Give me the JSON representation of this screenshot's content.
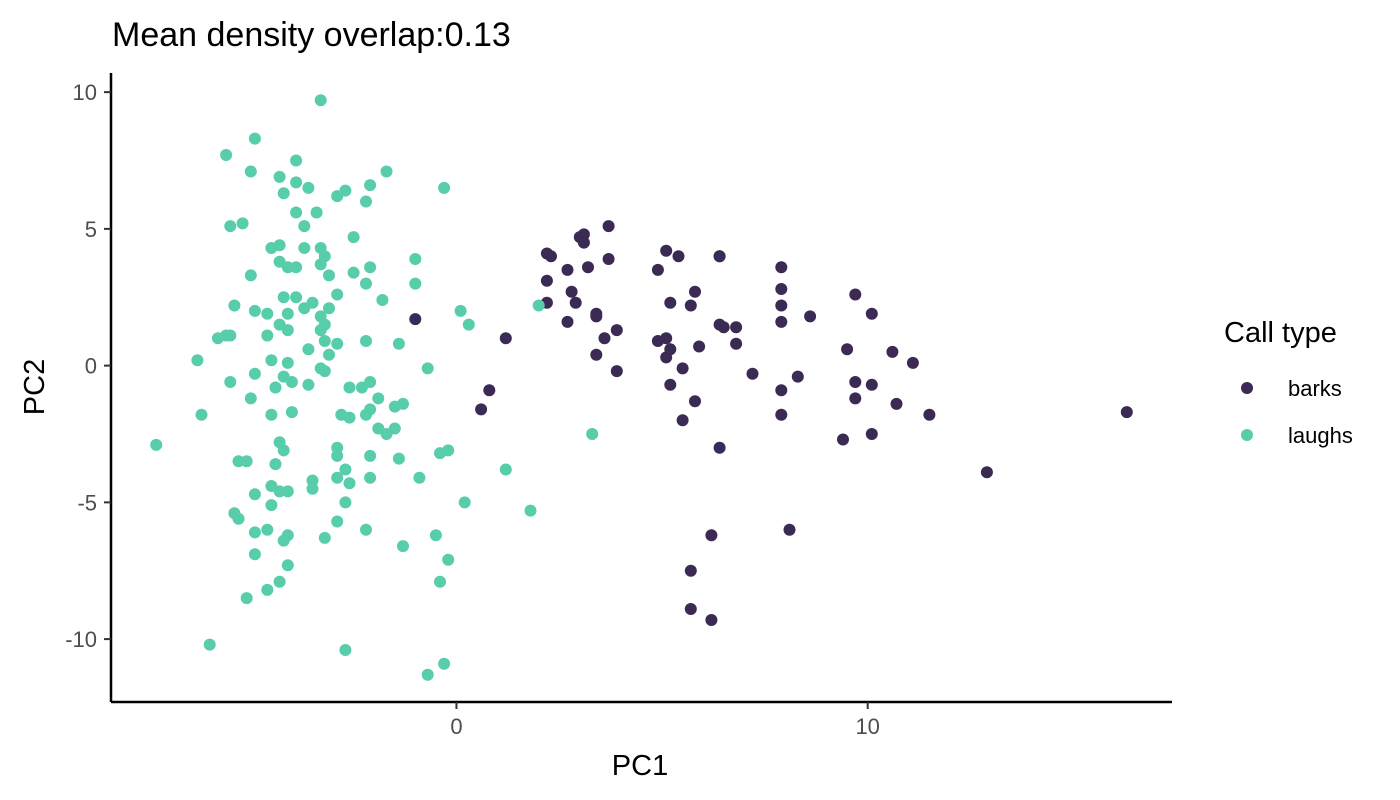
{
  "chart_data": {
    "type": "scatter",
    "title": "Mean density overlap:0.13",
    "xlabel": "PC1",
    "ylabel": "PC2",
    "xlim": [
      -8.4,
      17.4
    ],
    "ylim": [
      -12.3,
      10.7
    ],
    "x_ticks": [
      0,
      10
    ],
    "x_tick_labels": [
      "0",
      "10"
    ],
    "y_ticks": [
      10,
      5,
      0,
      -5,
      -10
    ],
    "y_tick_labels": [
      "10",
      "5",
      "0",
      "-5",
      "-10"
    ],
    "grid": false,
    "legend": {
      "title": "Call type",
      "position": "right",
      "entries": [
        {
          "label": "barks",
          "color": "#3a2a54"
        },
        {
          "label": "laughs",
          "color": "#58cdab"
        }
      ]
    },
    "series": [
      {
        "name": "barks",
        "color": "#3a2a54",
        "points": [
          [
            -1,
            1.7
          ],
          [
            1.2,
            1
          ],
          [
            0.8,
            -0.9
          ],
          [
            0.6,
            -1.6
          ],
          [
            2.2,
            4.1
          ],
          [
            2.3,
            4
          ],
          [
            3,
            4.7
          ],
          [
            3.1,
            4.8
          ],
          [
            3.1,
            4.5
          ],
          [
            3.7,
            5.1
          ],
          [
            2.7,
            3.5
          ],
          [
            2.2,
            3.1
          ],
          [
            3.2,
            3.6
          ],
          [
            3.7,
            3.9
          ],
          [
            2.2,
            2.3
          ],
          [
            2.8,
            2.7
          ],
          [
            2.9,
            2.3
          ],
          [
            2.7,
            1.6
          ],
          [
            3.4,
            1.9
          ],
          [
            3.4,
            1.8
          ],
          [
            3.6,
            1
          ],
          [
            3.9,
            1.3
          ],
          [
            3.4,
            0.4
          ],
          [
            3.9,
            -0.2
          ],
          [
            4.9,
            3.5
          ],
          [
            5.1,
            4.2
          ],
          [
            5.4,
            4
          ],
          [
            5.2,
            2.3
          ],
          [
            5.7,
            2.2
          ],
          [
            5.8,
            2.7
          ],
          [
            6.4,
            4
          ],
          [
            6.4,
            4
          ],
          [
            4.9,
            0.9
          ],
          [
            5.1,
            1
          ],
          [
            5.2,
            0.6
          ],
          [
            5.1,
            0.3
          ],
          [
            5.9,
            0.7
          ],
          [
            6.4,
            1.5
          ],
          [
            6.5,
            1.4
          ],
          [
            6.8,
            1.4
          ],
          [
            6.8,
            0.8
          ],
          [
            5.2,
            -0.7
          ],
          [
            5.5,
            -0.1
          ],
          [
            5.8,
            -1.3
          ],
          [
            5.5,
            -2
          ],
          [
            6.4,
            -3
          ],
          [
            7.9,
            3.6
          ],
          [
            7.9,
            2.8
          ],
          [
            7.9,
            2.2
          ],
          [
            7.9,
            1.6
          ],
          [
            8.6,
            1.8
          ],
          [
            7.2,
            -0.3
          ],
          [
            7.9,
            -0.9
          ],
          [
            8.3,
            -0.4
          ],
          [
            7.9,
            -1.8
          ],
          [
            9.7,
            2.6
          ],
          [
            10.1,
            1.9
          ],
          [
            9.5,
            0.6
          ],
          [
            10.6,
            0.5
          ],
          [
            11.1,
            0.1
          ],
          [
            9.7,
            -0.6
          ],
          [
            10.1,
            -0.7
          ],
          [
            9.7,
            -1.2
          ],
          [
            10.7,
            -1.4
          ],
          [
            11.5,
            -1.8
          ],
          [
            9.4,
            -2.7
          ],
          [
            10.1,
            -2.5
          ],
          [
            8.1,
            -6
          ],
          [
            6.2,
            -6.2
          ],
          [
            5.7,
            -7.5
          ],
          [
            5.7,
            -8.9
          ],
          [
            6.2,
            -9.3
          ],
          [
            12.9,
            -3.9
          ],
          [
            16.3,
            -1.7
          ]
        ]
      },
      {
        "name": "laughs",
        "color": "#58cdab",
        "points": [
          [
            -3.3,
            9.7
          ],
          [
            -4.9,
            8.3
          ],
          [
            -5.6,
            7.7
          ],
          [
            -5,
            7.1
          ],
          [
            -4.3,
            6.9
          ],
          [
            -3.9,
            7.5
          ],
          [
            -1.7,
            7.1
          ],
          [
            -4.2,
            6.3
          ],
          [
            -3.9,
            6.7
          ],
          [
            -3.6,
            6.5
          ],
          [
            -2.7,
            6.4
          ],
          [
            -2.9,
            6.2
          ],
          [
            -2.1,
            6.6
          ],
          [
            -2.2,
            6
          ],
          [
            -0.3,
            6.5
          ],
          [
            -3.9,
            5.6
          ],
          [
            -3.4,
            5.6
          ],
          [
            -3.7,
            5.1
          ],
          [
            -5.2,
            5.2
          ],
          [
            -5.5,
            5.1
          ],
          [
            -2.5,
            4.7
          ],
          [
            -4.3,
            4.4
          ],
          [
            -4.5,
            4.3
          ],
          [
            -3.3,
            4.3
          ],
          [
            -3.7,
            4.3
          ],
          [
            -3.2,
            4
          ],
          [
            -3.3,
            3.7
          ],
          [
            -4.3,
            3.8
          ],
          [
            -4.1,
            3.6
          ],
          [
            -3.9,
            3.6
          ],
          [
            -5,
            3.3
          ],
          [
            -3.1,
            3.3
          ],
          [
            -2.5,
            3.4
          ],
          [
            -2.1,
            3.6
          ],
          [
            -1,
            3.9
          ],
          [
            -1,
            3
          ],
          [
            -2.2,
            3
          ],
          [
            -4.2,
            2.5
          ],
          [
            -3.9,
            2.5
          ],
          [
            -3.5,
            2.3
          ],
          [
            -3.7,
            2.1
          ],
          [
            -3.1,
            2.1
          ],
          [
            -2.9,
            2.6
          ],
          [
            -1.8,
            2.4
          ],
          [
            -5.4,
            2.2
          ],
          [
            -4.9,
            2
          ],
          [
            -4.6,
            1.9
          ],
          [
            -4.1,
            1.9
          ],
          [
            -4.3,
            1.5
          ],
          [
            -4.1,
            1.3
          ],
          [
            -3.3,
            1.8
          ],
          [
            -3.2,
            1.5
          ],
          [
            -3.3,
            1.3
          ],
          [
            2,
            2.2
          ],
          [
            0.1,
            2
          ],
          [
            0.3,
            1.5
          ],
          [
            -5.6,
            1.1
          ],
          [
            -5.5,
            1.1
          ],
          [
            -4.6,
            1.1
          ],
          [
            -5.8,
            1
          ],
          [
            -3.2,
            0.9
          ],
          [
            -2.9,
            0.8
          ],
          [
            -2.2,
            0.9
          ],
          [
            -1.4,
            0.8
          ],
          [
            -3.6,
            0.6
          ],
          [
            -3.1,
            0.4
          ],
          [
            -4.5,
            0.2
          ],
          [
            -6.3,
            0.2
          ],
          [
            -4.1,
            0.1
          ],
          [
            -3.3,
            -0.1
          ],
          [
            -3.2,
            -0.2
          ],
          [
            -5.5,
            -0.6
          ],
          [
            -4.9,
            -0.3
          ],
          [
            -4.2,
            -0.4
          ],
          [
            -4,
            -0.6
          ],
          [
            -3.6,
            -0.7
          ],
          [
            -2.6,
            -0.8
          ],
          [
            -2.3,
            -0.8
          ],
          [
            -2.1,
            -0.6
          ],
          [
            -1.9,
            -1.2
          ],
          [
            -0.7,
            -0.1
          ],
          [
            -5,
            -1.2
          ],
          [
            -4.4,
            -0.8
          ],
          [
            -4,
            -1.7
          ],
          [
            -2.8,
            -1.8
          ],
          [
            -2.6,
            -1.9
          ],
          [
            -2.1,
            -1.6
          ],
          [
            -1.5,
            -1.5
          ],
          [
            -1.3,
            -1.4
          ],
          [
            -2.2,
            -1.8
          ],
          [
            -6.2,
            -1.8
          ],
          [
            -4.5,
            -1.8
          ],
          [
            -7.3,
            -2.9
          ],
          [
            -4.3,
            -2.8
          ],
          [
            -4.2,
            -3.1
          ],
          [
            -2.9,
            -3
          ],
          [
            -1.7,
            -2.5
          ],
          [
            -1.9,
            -2.3
          ],
          [
            -1.5,
            -2.3
          ],
          [
            -5.3,
            -3.5
          ],
          [
            -5.1,
            -3.5
          ],
          [
            -4.4,
            -3.6
          ],
          [
            -2.9,
            -3.3
          ],
          [
            -2.7,
            -3.8
          ],
          [
            -2.1,
            -3.3
          ],
          [
            -1.4,
            -3.4
          ],
          [
            -0.2,
            -3.1
          ],
          [
            -0.4,
            -3.2
          ],
          [
            -3.5,
            -4.2
          ],
          [
            -3.5,
            -4.5
          ],
          [
            -2.6,
            -4.3
          ],
          [
            -2.9,
            -4.1
          ],
          [
            -2.1,
            -4.1
          ],
          [
            -0.9,
            -4.1
          ],
          [
            1.2,
            -3.8
          ],
          [
            3.3,
            -2.5
          ],
          [
            -4.5,
            -4.4
          ],
          [
            -4.3,
            -4.6
          ],
          [
            -4.1,
            -4.6
          ],
          [
            -4.9,
            -4.7
          ],
          [
            -2.7,
            -5
          ],
          [
            0.2,
            -5
          ],
          [
            1.8,
            -5.3
          ],
          [
            -5.4,
            -5.4
          ],
          [
            -5.3,
            -5.6
          ],
          [
            -4.5,
            -5.1
          ],
          [
            -4.6,
            -6
          ],
          [
            -4.9,
            -6.1
          ],
          [
            -4.1,
            -6.2
          ],
          [
            -2.9,
            -5.7
          ],
          [
            -2.2,
            -6
          ],
          [
            -3.2,
            -6.3
          ],
          [
            -4.2,
            -6.4
          ],
          [
            -4.9,
            -6.9
          ],
          [
            -1.3,
            -6.6
          ],
          [
            -0.5,
            -6.2
          ],
          [
            -0.2,
            -7.1
          ],
          [
            -4.1,
            -7.3
          ],
          [
            -4.3,
            -7.9
          ],
          [
            -4.6,
            -8.2
          ],
          [
            -5.1,
            -8.5
          ],
          [
            -0.4,
            -7.9
          ],
          [
            -6,
            -10.2
          ],
          [
            -2.7,
            -10.4
          ],
          [
            -0.3,
            -10.9
          ],
          [
            -0.7,
            -11.3
          ]
        ]
      }
    ]
  }
}
